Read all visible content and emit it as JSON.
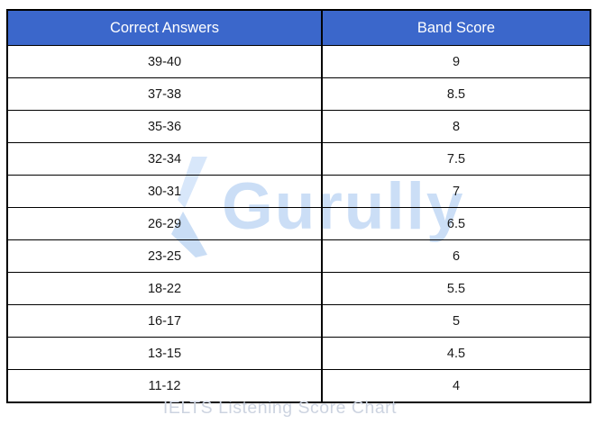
{
  "chart_data": {
    "type": "table",
    "title": "IELTS Listening Score Chart",
    "columns": [
      "Correct Answers",
      "Band Score"
    ],
    "rows": [
      [
        "39-40",
        "9"
      ],
      [
        "37-38",
        "8.5"
      ],
      [
        "35-36",
        "8"
      ],
      [
        "32-34",
        "7.5"
      ],
      [
        "30-31",
        "7"
      ],
      [
        "26-29",
        "6.5"
      ],
      [
        "23-25",
        "6"
      ],
      [
        "18-22",
        "5.5"
      ],
      [
        "16-17",
        "5"
      ],
      [
        "13-15",
        "4.5"
      ],
      [
        "11-12",
        "4"
      ]
    ]
  },
  "watermark": {
    "text": "Gurully",
    "logo": "gurully-logo-icon"
  },
  "caption": {
    "text": "IELTS Listening Score Chart"
  },
  "colors": {
    "header_bg": "#3b67cb",
    "header_text": "#ffffff",
    "border": "#000000",
    "cell_text": "#1a1a1a",
    "watermark": "#cbdef6",
    "watermark_logo_light": "#d8e7fa",
    "watermark_logo_dark": "#c9ddf5",
    "caption": "#ccd3e0"
  }
}
